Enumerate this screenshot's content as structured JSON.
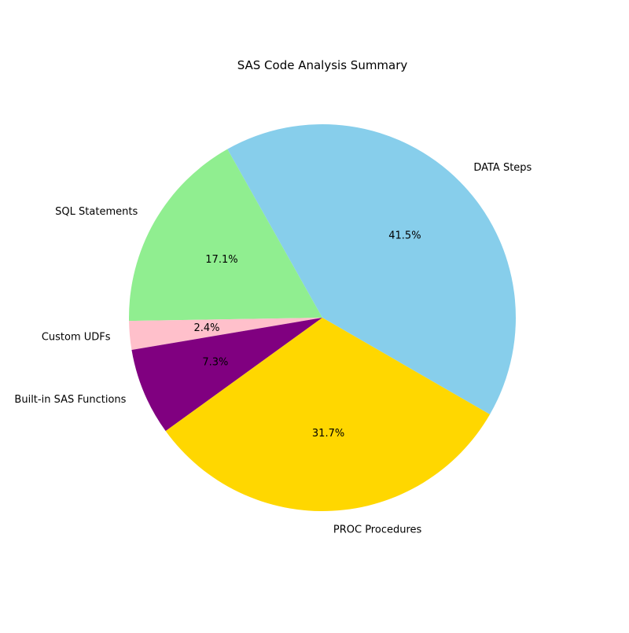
{
  "chart_data": {
    "type": "pie",
    "title": "SAS Code Analysis Summary",
    "categories": [
      "DATA Steps",
      "SQL Statements",
      "Custom UDFs",
      "Built-in SAS Functions",
      "PROC Procedures"
    ],
    "values": [
      41.5,
      17.1,
      2.4,
      7.3,
      31.7
    ],
    "percent_labels": [
      "41.5%",
      "17.1%",
      "2.4%",
      "7.3%",
      "31.7%"
    ],
    "colors": [
      "#87CEEB",
      "#90EE90",
      "#FFC0CB",
      "#800080",
      "#FFD700"
    ],
    "start_angle_degrees": -30,
    "direction": "counterclockwise",
    "legend": "none"
  }
}
